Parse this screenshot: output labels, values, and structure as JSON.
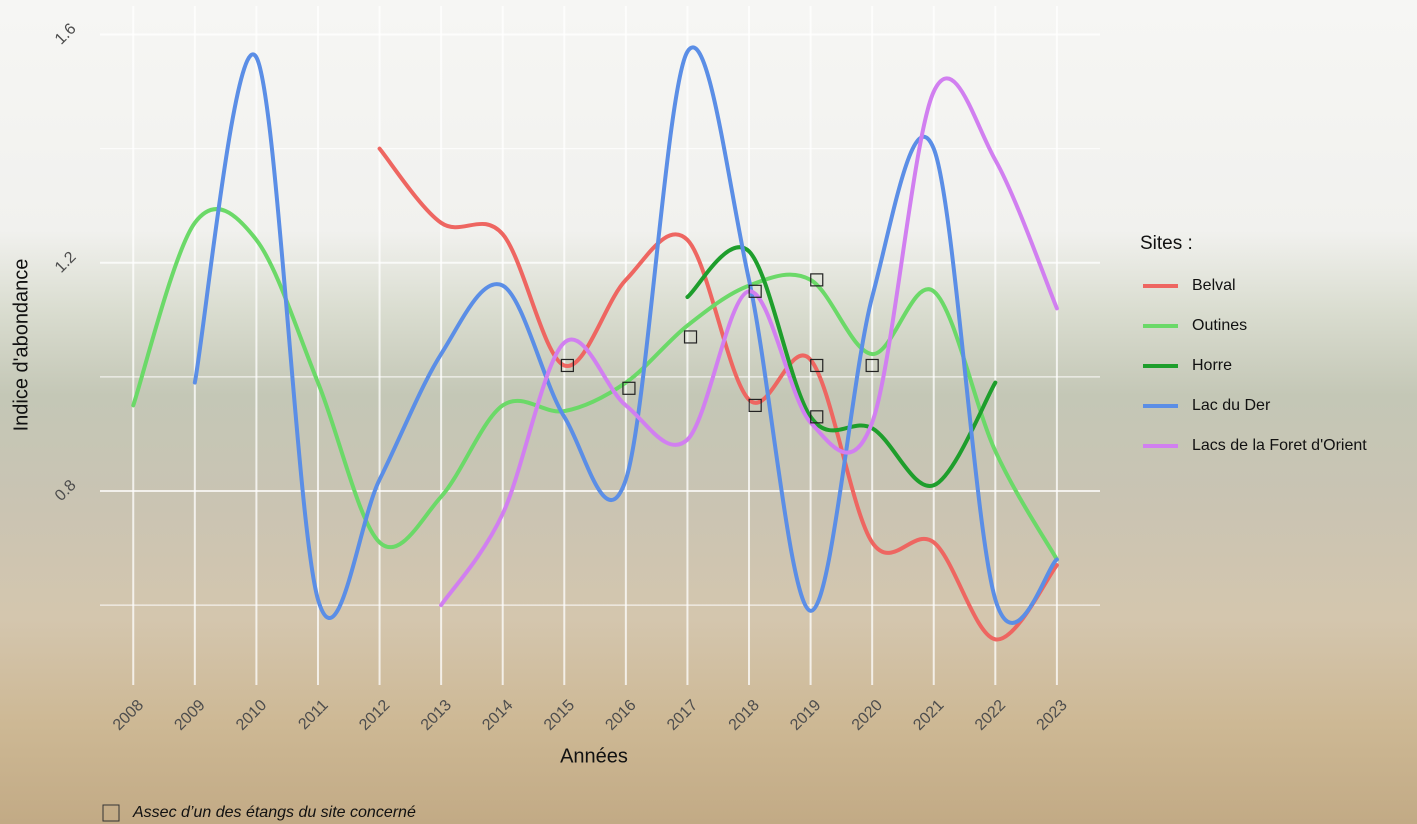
{
  "chart_data": {
    "type": "line",
    "x_label": "Années",
    "y_label": "Indice d'abondance",
    "legend_title": "Sites :",
    "x": [
      2008,
      2009,
      2010,
      2011,
      2012,
      2013,
      2014,
      2015,
      2016,
      2017,
      2018,
      2019,
      2020,
      2021,
      2022,
      2023
    ],
    "xlim": [
      2007.46,
      2023.7
    ],
    "xticks": [
      2008,
      2009,
      2010,
      2011,
      2012,
      2013,
      2014,
      2015,
      2016,
      2017,
      2018,
      2019,
      2020,
      2021,
      2022,
      2023
    ],
    "ylim": [
      0.46,
      1.65
    ],
    "yticks": [
      0.8,
      1.2,
      1.6
    ],
    "yticks_minor": [
      0.6,
      1.0,
      1.4
    ],
    "grid": true,
    "legend": "right",
    "series": [
      {
        "name": "Belval",
        "color": "#ee6661",
        "values": [
          null,
          null,
          null,
          null,
          1.4,
          1.27,
          1.25,
          1.02,
          1.17,
          1.24,
          0.96,
          1.03,
          0.71,
          0.71,
          0.54,
          0.67
        ]
      },
      {
        "name": "Outines",
        "color": "#6bd968",
        "values": [
          0.95,
          1.27,
          1.24,
          0.99,
          0.71,
          0.79,
          0.95,
          0.94,
          0.99,
          1.09,
          1.16,
          1.17,
          1.04,
          1.15,
          0.87,
          0.68
        ]
      },
      {
        "name": "Horre",
        "color": "#1e9e2c",
        "values": [
          null,
          null,
          null,
          null,
          null,
          null,
          null,
          null,
          null,
          1.14,
          1.22,
          0.93,
          0.91,
          0.81,
          0.99,
          null
        ]
      },
      {
        "name": "Lac du Der",
        "color": "#5b8ee6",
        "values": [
          null,
          0.99,
          1.56,
          0.61,
          0.82,
          1.04,
          1.16,
          0.93,
          0.82,
          1.57,
          1.17,
          0.59,
          1.14,
          1.4,
          0.61,
          0.68
        ]
      },
      {
        "name": "Lacs de la Foret d'Orient",
        "color": "#d17ff0",
        "values": [
          null,
          null,
          null,
          null,
          null,
          0.6,
          0.76,
          1.06,
          0.95,
          0.89,
          1.15,
          0.92,
          0.92,
          1.5,
          1.38,
          1.12
        ]
      }
    ],
    "marker_label": "Assec d’un des étangs du site concerné",
    "markers": {
      "x": [
        2015.05,
        2016.05,
        2017.05,
        2018.1,
        2018.1,
        2019.1,
        2019.1,
        2019.1,
        2020.0
      ],
      "y": [
        1.02,
        0.98,
        1.07,
        1.15,
        0.95,
        1.17,
        1.02,
        0.93,
        1.02
      ]
    }
  }
}
